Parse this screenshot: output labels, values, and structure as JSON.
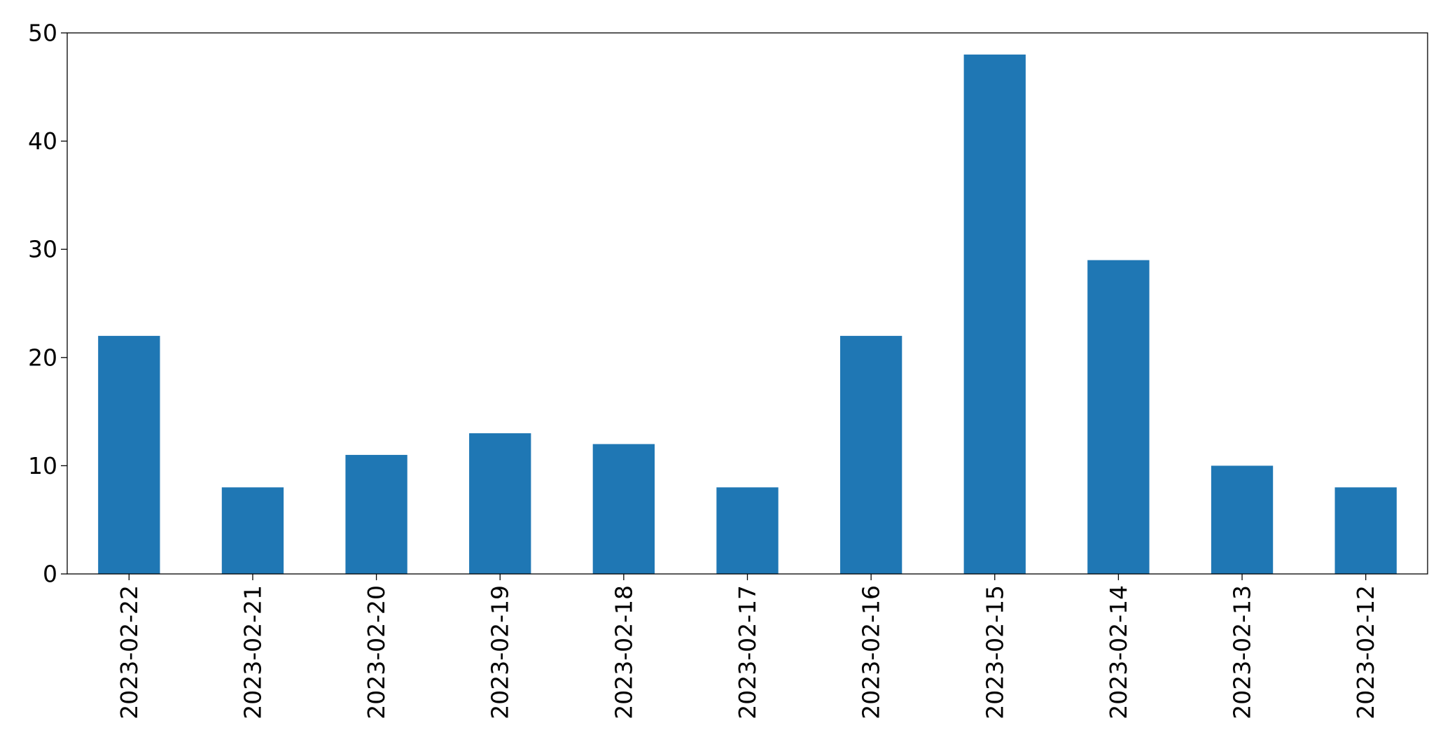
{
  "chart_data": {
    "type": "bar",
    "title": "",
    "xlabel": "",
    "ylabel": "",
    "categories": [
      "2023-02-22",
      "2023-02-21",
      "2023-02-20",
      "2023-02-19",
      "2023-02-18",
      "2023-02-17",
      "2023-02-16",
      "2023-02-15",
      "2023-02-14",
      "2023-02-13",
      "2023-02-12"
    ],
    "values": [
      22,
      8,
      11,
      13,
      12,
      8,
      22,
      48,
      29,
      10,
      8
    ],
    "ylim": [
      0,
      50
    ],
    "yticks": [
      0,
      10,
      20,
      30,
      40,
      50
    ],
    "bar_color": "#1f77b4",
    "grid": false,
    "legend": false
  }
}
